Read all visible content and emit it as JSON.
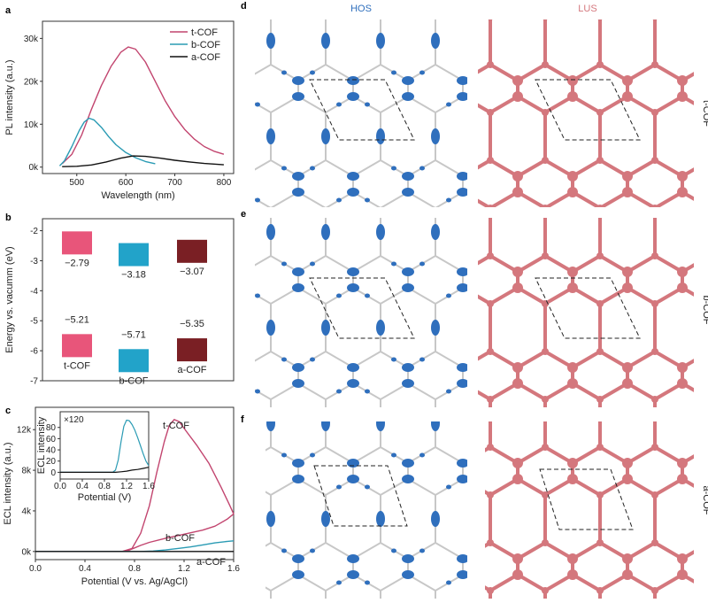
{
  "colors": {
    "t_cof": "#c2456f",
    "b_cof": "#2a9bb4",
    "a_cof": "#111111",
    "hos": "#2f6fbd",
    "lus": "#d4777d",
    "bar_t": "#e8557a",
    "bar_b": "#22a3c9",
    "bar_a": "#7a1f24",
    "frame": "#333333"
  },
  "panel_labels": {
    "a": "a",
    "b": "b",
    "c": "c",
    "d": "d",
    "e": "e",
    "f": "f"
  },
  "structures": {
    "col_hos": "HOS",
    "col_lus": "LUS",
    "row_labels": [
      "t-COF",
      "b-COF",
      "a-COF"
    ],
    "icon": "cof-honeycomb-orbital-isosurface"
  },
  "chart_data": [
    {
      "id": "a",
      "type": "line",
      "xlabel": "Wavelength (nm)",
      "ylabel": "PL intensity (a.u.)",
      "xlim": [
        430,
        820
      ],
      "ylim": [
        -1500,
        34000
      ],
      "xticks": [
        500,
        600,
        700,
        800
      ],
      "xtick_labels": [
        "500",
        "600",
        "700",
        "800"
      ],
      "yticks": [
        0,
        10000,
        20000,
        30000
      ],
      "ytick_labels": [
        "0k",
        "10k",
        "20k",
        "30k"
      ],
      "legend_position": "top-right",
      "legend_labels": [
        "t-COF",
        "b-COF",
        "a-COF"
      ],
      "series": [
        {
          "name": "t-COF",
          "color_key": "t_cof",
          "x": [
            470,
            490,
            510,
            530,
            550,
            570,
            590,
            605,
            620,
            640,
            660,
            680,
            700,
            720,
            740,
            760,
            780,
            800
          ],
          "y": [
            800,
            3000,
            7500,
            13500,
            19000,
            23500,
            26800,
            28000,
            27500,
            24500,
            20000,
            15500,
            11800,
            8800,
            6500,
            4800,
            3700,
            3000
          ]
        },
        {
          "name": "b-COF",
          "color_key": "b_cof",
          "x": [
            465,
            475,
            490,
            505,
            515,
            525,
            535,
            550,
            565,
            580,
            600,
            620,
            640,
            660
          ],
          "y": [
            300,
            1500,
            4800,
            8500,
            10500,
            11400,
            11000,
            9300,
            7100,
            5200,
            3400,
            2200,
            1300,
            800
          ]
        },
        {
          "name": "a-COF",
          "color_key": "a_cof",
          "x": [
            470,
            500,
            530,
            560,
            590,
            615,
            640,
            670,
            700,
            730,
            760,
            800
          ],
          "y": [
            100,
            200,
            500,
            1200,
            2100,
            2600,
            2500,
            2100,
            1600,
            1200,
            850,
            550
          ]
        }
      ]
    },
    {
      "id": "b",
      "type": "bar",
      "ylabel": "Energy vs. vacumm (eV)",
      "ylim": [
        -7,
        -1.6
      ],
      "yticks": [
        -7,
        -6,
        -5,
        -4,
        -3,
        -2
      ],
      "ytick_labels": [
        "-7",
        "-6",
        "-5",
        "-4",
        "-3",
        "-2"
      ],
      "categories": [
        "t-COF",
        "b-COF",
        "a-COF"
      ],
      "lumo": [
        -2.79,
        -3.18,
        -3.07
      ],
      "homo": [
        -5.21,
        -5.71,
        -5.35
      ],
      "lumo_labels": [
        "−2.79",
        "−3.18",
        "−3.07"
      ],
      "homo_labels": [
        "−5.21",
        "−5.71",
        "−5.35"
      ],
      "color_keys": [
        "bar_t",
        "bar_b",
        "bar_a"
      ]
    },
    {
      "id": "c",
      "type": "line",
      "xlabel": "Potential (V vs. Ag/AgCl)",
      "ylabel": "ECL intensity (a.u.)",
      "xlim": [
        0,
        1.6
      ],
      "ylim": [
        -800,
        14200
      ],
      "xticks": [
        0,
        0.4,
        0.8,
        1.2,
        1.6
      ],
      "xtick_labels": [
        "0.0",
        "0.4",
        "0.8",
        "1.2",
        "1.6"
      ],
      "yticks": [
        0,
        4000,
        8000,
        12000
      ],
      "ytick_labels": [
        "0k",
        "4k",
        "8k",
        "12k"
      ],
      "annotations": [
        "t-COF",
        "b-COF",
        "a-COF"
      ],
      "series": [
        {
          "name": "t-COF",
          "color_key": "t_cof",
          "x": [
            0,
            0.7,
            0.78,
            0.85,
            0.92,
            0.98,
            1.04,
            1.08,
            1.12,
            1.16,
            1.22,
            1.3,
            1.4,
            1.5,
            1.57,
            1.6,
            1.55,
            1.45,
            1.35,
            1.2,
            1.05,
            0.92,
            0.85,
            0.8,
            0.76,
            0.74,
            0.72,
            0.5,
            0
          ],
          "y": [
            0,
            0,
            300,
            1800,
            4500,
            7800,
            10800,
            12400,
            13000,
            12800,
            11800,
            10500,
            8700,
            6300,
            4500,
            3700,
            3200,
            2500,
            2100,
            1700,
            1300,
            900,
            600,
            350,
            150,
            50,
            0,
            0,
            0
          ]
        },
        {
          "name": "b-COF",
          "color_key": "b_cof",
          "x": [
            0,
            0.85,
            0.95,
            1.05,
            1.15,
            1.25,
            1.35,
            1.45,
            1.55,
            1.6
          ],
          "y": [
            0,
            0,
            50,
            150,
            300,
            450,
            650,
            850,
            1000,
            1050
          ]
        },
        {
          "name": "a-COF",
          "color_key": "a_cof",
          "x": [
            0,
            1.6
          ],
          "y": [
            0,
            0
          ]
        }
      ]
    },
    {
      "id": "c_inset",
      "type": "line",
      "xlabel": "Potential (V)",
      "ylabel": "ECL intensity",
      "scale_note": "×120",
      "xlim": [
        0,
        1.6
      ],
      "ylim": [
        -12,
        108
      ],
      "xticks": [
        0,
        0.4,
        0.8,
        1.2,
        1.6
      ],
      "xtick_labels": [
        "0.0",
        "0.4",
        "0.8",
        "1.2",
        "1.6"
      ],
      "yticks": [
        0,
        20,
        40,
        60,
        80
      ],
      "ytick_labels": [
        "0",
        "20",
        "40",
        "60",
        "80"
      ],
      "series": [
        {
          "name": "b-COF",
          "color_key": "b_cof",
          "x": [
            0,
            0.95,
            1.0,
            1.05,
            1.1,
            1.15,
            1.2,
            1.25,
            1.3,
            1.35,
            1.4,
            1.45,
            1.5,
            1.55,
            1.6
          ],
          "y": [
            0,
            0,
            4,
            22,
            55,
            82,
            93,
            92,
            85,
            75,
            62,
            48,
            33,
            20,
            12
          ]
        },
        {
          "name": "a-COF",
          "color_key": "a_cof",
          "x": [
            0,
            1.0,
            1.1,
            1.2,
            1.3,
            1.4,
            1.5,
            1.6
          ],
          "y": [
            0,
            0,
            1,
            2,
            4,
            5,
            7,
            9
          ]
        }
      ]
    }
  ]
}
